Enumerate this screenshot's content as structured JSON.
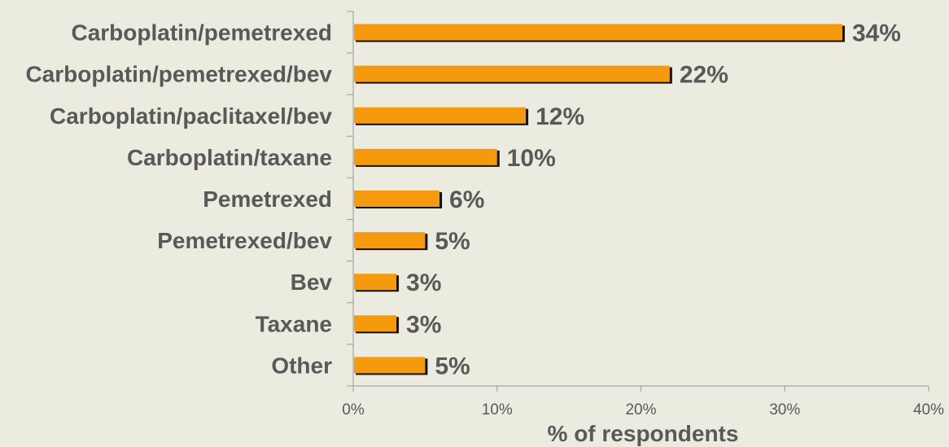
{
  "chart_data": {
    "type": "bar",
    "orientation": "horizontal",
    "categories": [
      "Carboplatin/pemetrexed",
      "Carboplatin/pemetrexed/bev",
      "Carboplatin/paclitaxel/bev",
      "Carboplatin/taxane",
      "Pemetrexed",
      "Pemetrexed/bev",
      "Bev",
      "Taxane",
      "Other"
    ],
    "values": [
      34,
      22,
      12,
      10,
      6,
      5,
      3,
      3,
      5
    ],
    "value_labels": [
      "34%",
      "22%",
      "12%",
      "10%",
      "6%",
      "5%",
      "3%",
      "3%",
      "5%"
    ],
    "xlabel": "% of respondents",
    "ylabel": "",
    "title": "",
    "xlim": [
      0,
      40
    ],
    "xticks": [
      0,
      10,
      20,
      30,
      40
    ],
    "xtick_labels": [
      "0%",
      "10%",
      "20%",
      "30%",
      "40%"
    ],
    "grid": false,
    "colors": {
      "bar": "#f59a0c",
      "bar_shadow": "#111111",
      "axis": "#a6a6a6",
      "text": "#595959",
      "background": "#ecebdf"
    }
  }
}
